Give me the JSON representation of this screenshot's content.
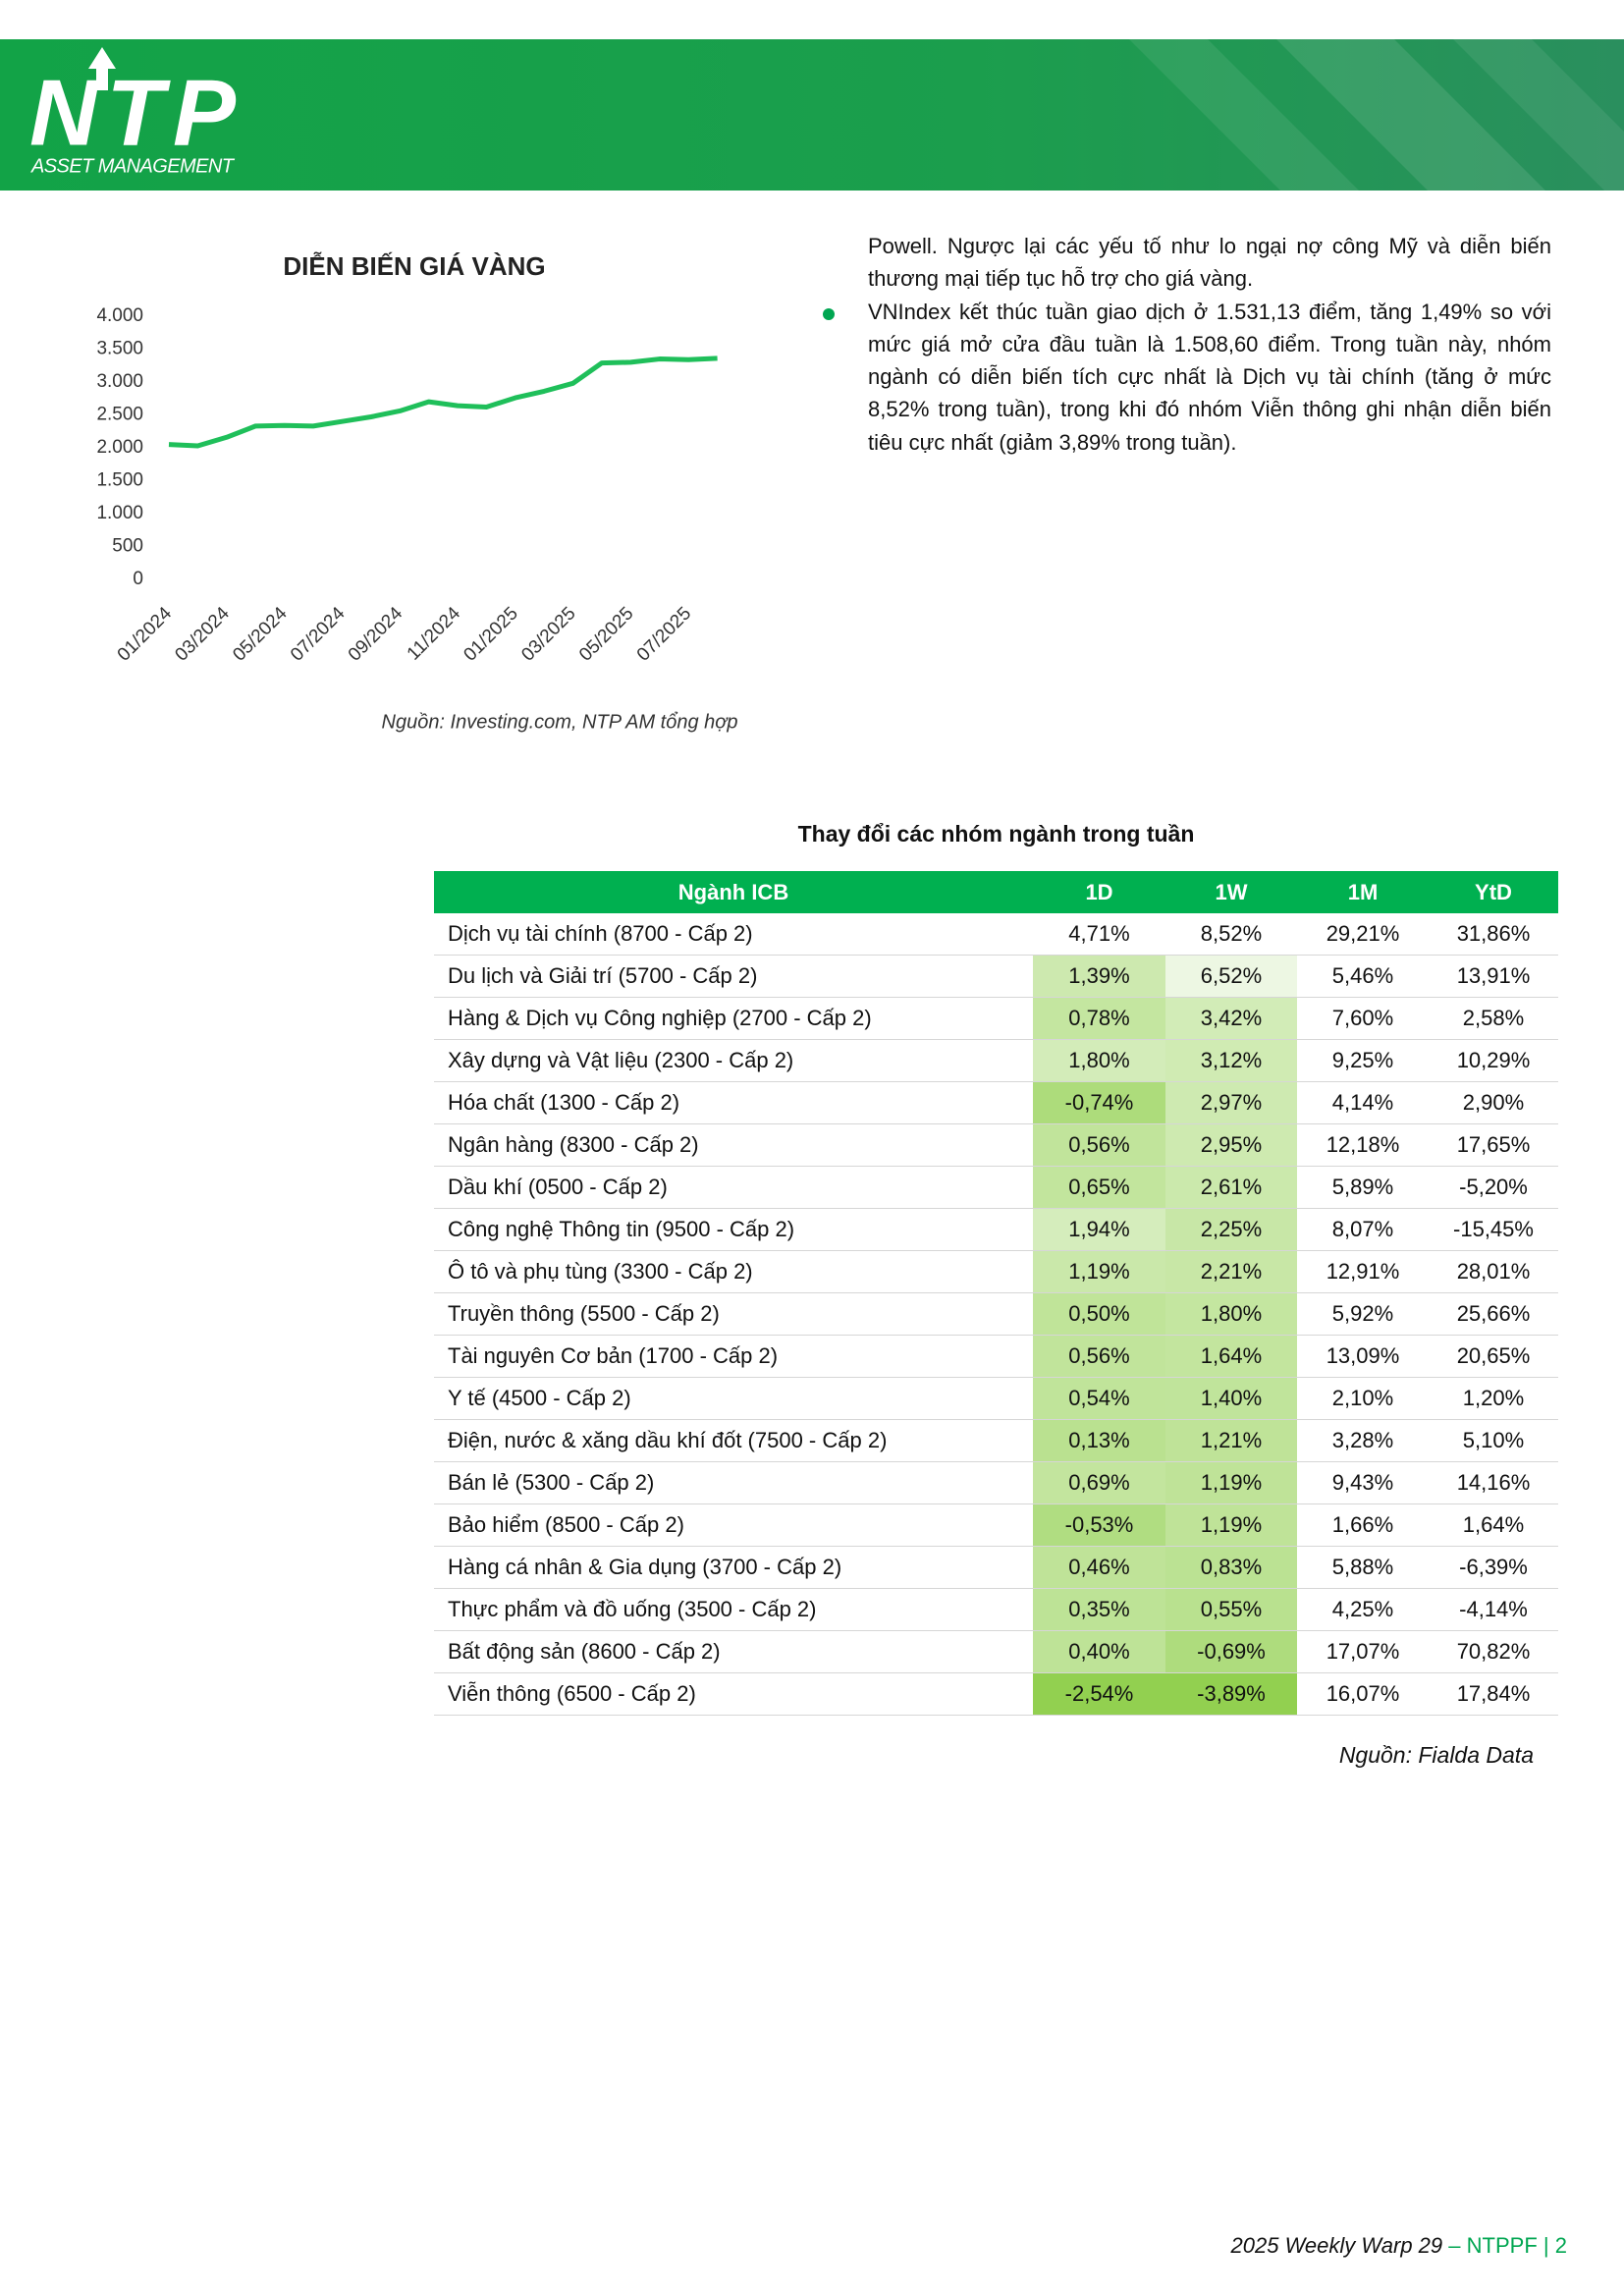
{
  "header": {
    "logo_text": "NTP",
    "logo_subtext": "ASSET MANAGEMENT"
  },
  "chart_data": {
    "type": "line",
    "title": "DIỄN BIẾN GIÁ VÀNG",
    "categories": [
      "01/2024",
      null,
      "03/2024",
      null,
      "05/2024",
      null,
      "07/2024",
      null,
      "09/2024",
      null,
      "11/2024",
      null,
      "01/2025",
      null,
      "03/2025",
      null,
      "05/2025",
      null,
      "07/2025",
      null
    ],
    "series": [
      {
        "color": "#1fbf5a",
        "values": [
          2050,
          2030,
          2160,
          2330,
          2340,
          2330,
          2400,
          2470,
          2560,
          2700,
          2640,
          2620,
          2760,
          2860,
          2980,
          3290,
          3300,
          3350,
          3340,
          3360
        ]
      }
    ],
    "ylim": [
      0,
      4000
    ],
    "yticks": [
      0,
      500,
      {
        "value": 1000,
        "label": "1.000"
      },
      {
        "value": 1500,
        "label": "1.500"
      },
      {
        "value": 2000,
        "label": "2.000"
      },
      {
        "value": 2500,
        "label": "2.500"
      },
      {
        "value": 3000,
        "label": "3.000"
      },
      {
        "value": 3500,
        "label": "3.500"
      },
      {
        "value": 4000,
        "label": "4.000"
      }
    ],
    "grid": false,
    "source": "Nguồn: Investing.com,  NTP AM tổng hợp"
  },
  "text": {
    "paragraph": "Powell. Ngược lại các yếu tố như lo ngại nợ công Mỹ và diễn biến thương mại tiếp tục hỗ trợ cho giá vàng.",
    "bullets": [
      "VNIndex kết thúc tuần giao dịch ở 1.531,13 điểm, tăng 1,49% so với mức giá mở cửa đầu tuần là 1.508,60 điểm. Trong tuần này, nhóm ngành có diễn biến tích cực nhất là Dịch vụ tài chính (tăng ở mức 8,52% trong tuần), trong khi đó nhóm Viễn thông ghi nhận diễn biến tiêu cực nhất (giảm 3,89% trong tuần)."
    ]
  },
  "table": {
    "title": "Thay đổi các nhóm ngành trong tuần",
    "columns": [
      "Ngành ICB",
      "1D",
      "1W",
      "1M",
      "YtD"
    ],
    "rows": [
      [
        "Dịch vụ tài chính (8700 - Cấp 2)",
        "4,71%",
        "8,52%",
        "29,21%",
        "31,86%"
      ],
      [
        "Du lịch và Giải trí (5700 - Cấp 2)",
        "1,39%",
        "6,52%",
        "5,46%",
        "13,91%"
      ],
      [
        "Hàng & Dịch vụ Công nghiệp (2700 - Cấp 2)",
        "0,78%",
        "3,42%",
        "7,60%",
        "2,58%"
      ],
      [
        "Xây dựng và Vật liệu (2300 - Cấp 2)",
        "1,80%",
        "3,12%",
        "9,25%",
        "10,29%"
      ],
      [
        "Hóa chất (1300 - Cấp 2)",
        "-0,74%",
        "2,97%",
        "4,14%",
        "2,90%"
      ],
      [
        "Ngân hàng (8300 - Cấp 2)",
        "0,56%",
        "2,95%",
        "12,18%",
        "17,65%"
      ],
      [
        "Dầu khí (0500 - Cấp 2)",
        "0,65%",
        "2,61%",
        "5,89%",
        "-5,20%"
      ],
      [
        "Công nghệ Thông tin (9500 - Cấp 2)",
        "1,94%",
        "2,25%",
        "8,07%",
        "-15,45%"
      ],
      [
        "Ô tô và phụ tùng (3300 - Cấp 2)",
        "1,19%",
        "2,21%",
        "12,91%",
        "28,01%"
      ],
      [
        "Truyền thông (5500 - Cấp 2)",
        "0,50%",
        "1,80%",
        "5,92%",
        "25,66%"
      ],
      [
        "Tài nguyên Cơ bản (1700 - Cấp 2)",
        "0,56%",
        "1,64%",
        "13,09%",
        "20,65%"
      ],
      [
        "Y tế (4500 - Cấp 2)",
        "0,54%",
        "1,40%",
        "2,10%",
        "1,20%"
      ],
      [
        "Điện, nước & xăng dầu khí đốt (7500 - Cấp 2)",
        "0,13%",
        "1,21%",
        "3,28%",
        "5,10%"
      ],
      [
        "Bán lẻ (5300 - Cấp 2)",
        "0,69%",
        "1,19%",
        "9,43%",
        "14,16%"
      ],
      [
        "Bảo hiểm (8500 - Cấp 2)",
        "-0,53%",
        "1,19%",
        "1,66%",
        "1,64%"
      ],
      [
        "Hàng cá nhân & Gia dụng (3700 - Cấp 2)",
        "0,46%",
        "0,83%",
        "5,88%",
        "-6,39%"
      ],
      [
        "Thực phẩm và đồ uống (3500 - Cấp 2)",
        "0,35%",
        "0,55%",
        "4,25%",
        "-4,14%"
      ],
      [
        "Bất động sản (8600 - Cấp 2)",
        "0,40%",
        "-0,69%",
        "17,07%",
        "70,82%"
      ],
      [
        "Viễn thông (6500 - Cấp 2)",
        "-2,54%",
        "-3,89%",
        "16,07%",
        "17,84%"
      ]
    ],
    "heatmap": {
      "columns": [
        1,
        2
      ],
      "low_color": "#92d050",
      "high_color": "#ffffff"
    },
    "source": "Nguồn: Fialda Data"
  },
  "footer": {
    "report": "2025 Weekly Warp 29",
    "separator": "–",
    "fund": "NTPPF",
    "divider": "|",
    "page": "2"
  }
}
